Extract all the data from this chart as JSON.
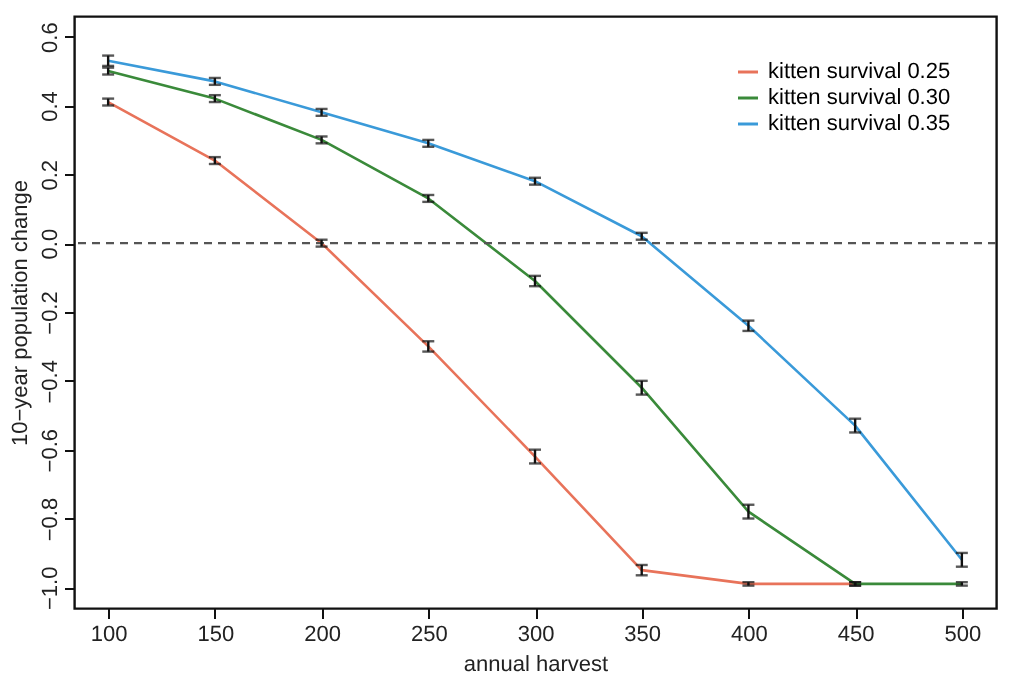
{
  "chart_data": {
    "type": "line",
    "xlabel": "annual harvest",
    "ylabel": "10−year population change",
    "x": [
      100,
      150,
      200,
      250,
      300,
      350,
      400,
      450,
      500
    ],
    "series": [
      {
        "name": "kitten survival 0.25",
        "color": "#e8735a",
        "values": [
          0.41,
          0.24,
          0.0,
          -0.3,
          -0.62,
          -0.95,
          -0.99,
          -0.99,
          null
        ],
        "errors": [
          0.01,
          0.01,
          0.01,
          0.015,
          0.02,
          0.015,
          0.005,
          0.005,
          null
        ]
      },
      {
        "name": "kitten survival 0.30",
        "color": "#3a8a3a",
        "values": [
          0.5,
          0.42,
          0.3,
          0.13,
          -0.11,
          -0.42,
          -0.78,
          -0.99,
          -0.99
        ],
        "errors": [
          0.01,
          0.01,
          0.01,
          0.01,
          0.015,
          0.02,
          0.02,
          0.005,
          0.005
        ]
      },
      {
        "name": "kitten survival 0.35",
        "color": "#3a9ad9",
        "values": [
          0.53,
          0.47,
          0.38,
          0.29,
          0.18,
          0.02,
          -0.24,
          -0.53,
          -0.92
        ],
        "errors": [
          0.015,
          0.01,
          0.01,
          0.01,
          0.01,
          0.01,
          0.015,
          0.02,
          0.02
        ]
      }
    ],
    "xlim": [
      84,
      516
    ],
    "ylim": [
      -1.06,
      0.66
    ],
    "xticks": [
      100,
      150,
      200,
      250,
      300,
      350,
      400,
      450,
      500
    ],
    "yticks": [
      {
        "value": -1.0,
        "label": "−1.0"
      },
      {
        "value": -0.8,
        "label": "−0.8"
      },
      {
        "value": -0.6,
        "label": "−0.6"
      },
      {
        "value": -0.4,
        "label": "−0.4"
      },
      {
        "value": -0.2,
        "label": "−0.2"
      },
      {
        "value": 0.0,
        "label": "0.0"
      },
      {
        "value": 0.2,
        "label": "0.2"
      },
      {
        "value": 0.4,
        "label": "0.4"
      },
      {
        "value": 0.6,
        "label": "0.6"
      }
    ],
    "ref_lines": [
      {
        "axis": "y",
        "value": 0.0,
        "color": "#555555",
        "line_style": "dashed"
      }
    ],
    "legend": "top right",
    "grid": false,
    "marker": "none",
    "line_style": "solid"
  }
}
